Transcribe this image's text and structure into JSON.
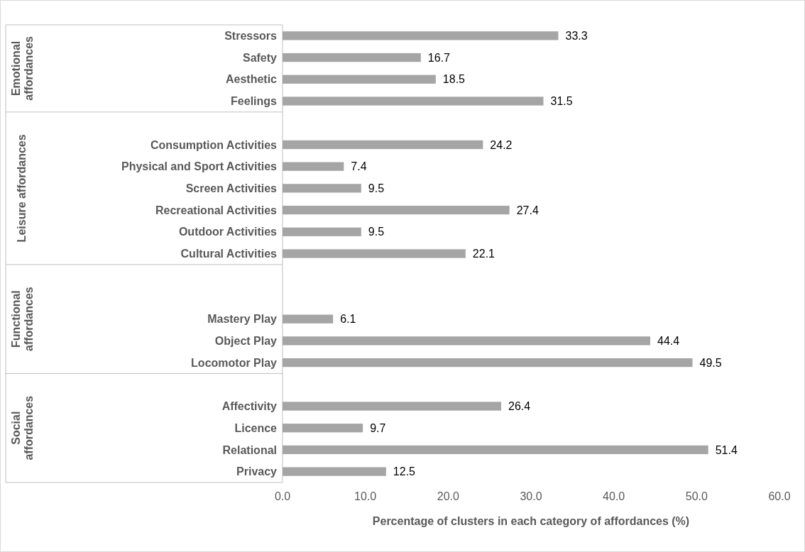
{
  "chart_data": {
    "type": "bar",
    "orientation": "horizontal",
    "xlabel": "Percentage of clusters in each category of affordances (%)",
    "categories": [
      "Stressors",
      "Safety",
      "Aesthetic",
      "Feelings",
      null,
      "Consumption Activities",
      "Physical and Sport Activities",
      "Screen Activities",
      "Recreational Activities",
      "Outdoor Activities",
      "Cultural Activities",
      null,
      null,
      "Mastery Play",
      "Object Play",
      "Locomotor Play",
      null,
      "Affectivity",
      "Licence",
      "Relational",
      "Privacy"
    ],
    "values": [
      33.3,
      16.7,
      18.5,
      31.5,
      null,
      24.2,
      7.4,
      9.5,
      27.4,
      9.5,
      22.1,
      null,
      null,
      6.1,
      44.4,
      49.5,
      null,
      26.4,
      9.7,
      51.4,
      12.5
    ],
    "color": "#a5a5a5",
    "data_labels": true,
    "xlim": [
      0,
      60
    ],
    "xticks": [
      {
        "value": 0,
        "label": "0.0"
      },
      {
        "value": 10,
        "label": "10.0"
      },
      {
        "value": 20,
        "label": "20.0"
      },
      {
        "value": 30,
        "label": "30.0"
      },
      {
        "value": 40,
        "label": "40.0"
      },
      {
        "value": 50,
        "label": "50.0"
      },
      {
        "value": 60,
        "label": "60.0"
      }
    ],
    "annotations": [
      "Emotional affordances",
      "Leisure affordances",
      "Functional affordances",
      "Social affordances"
    ]
  }
}
